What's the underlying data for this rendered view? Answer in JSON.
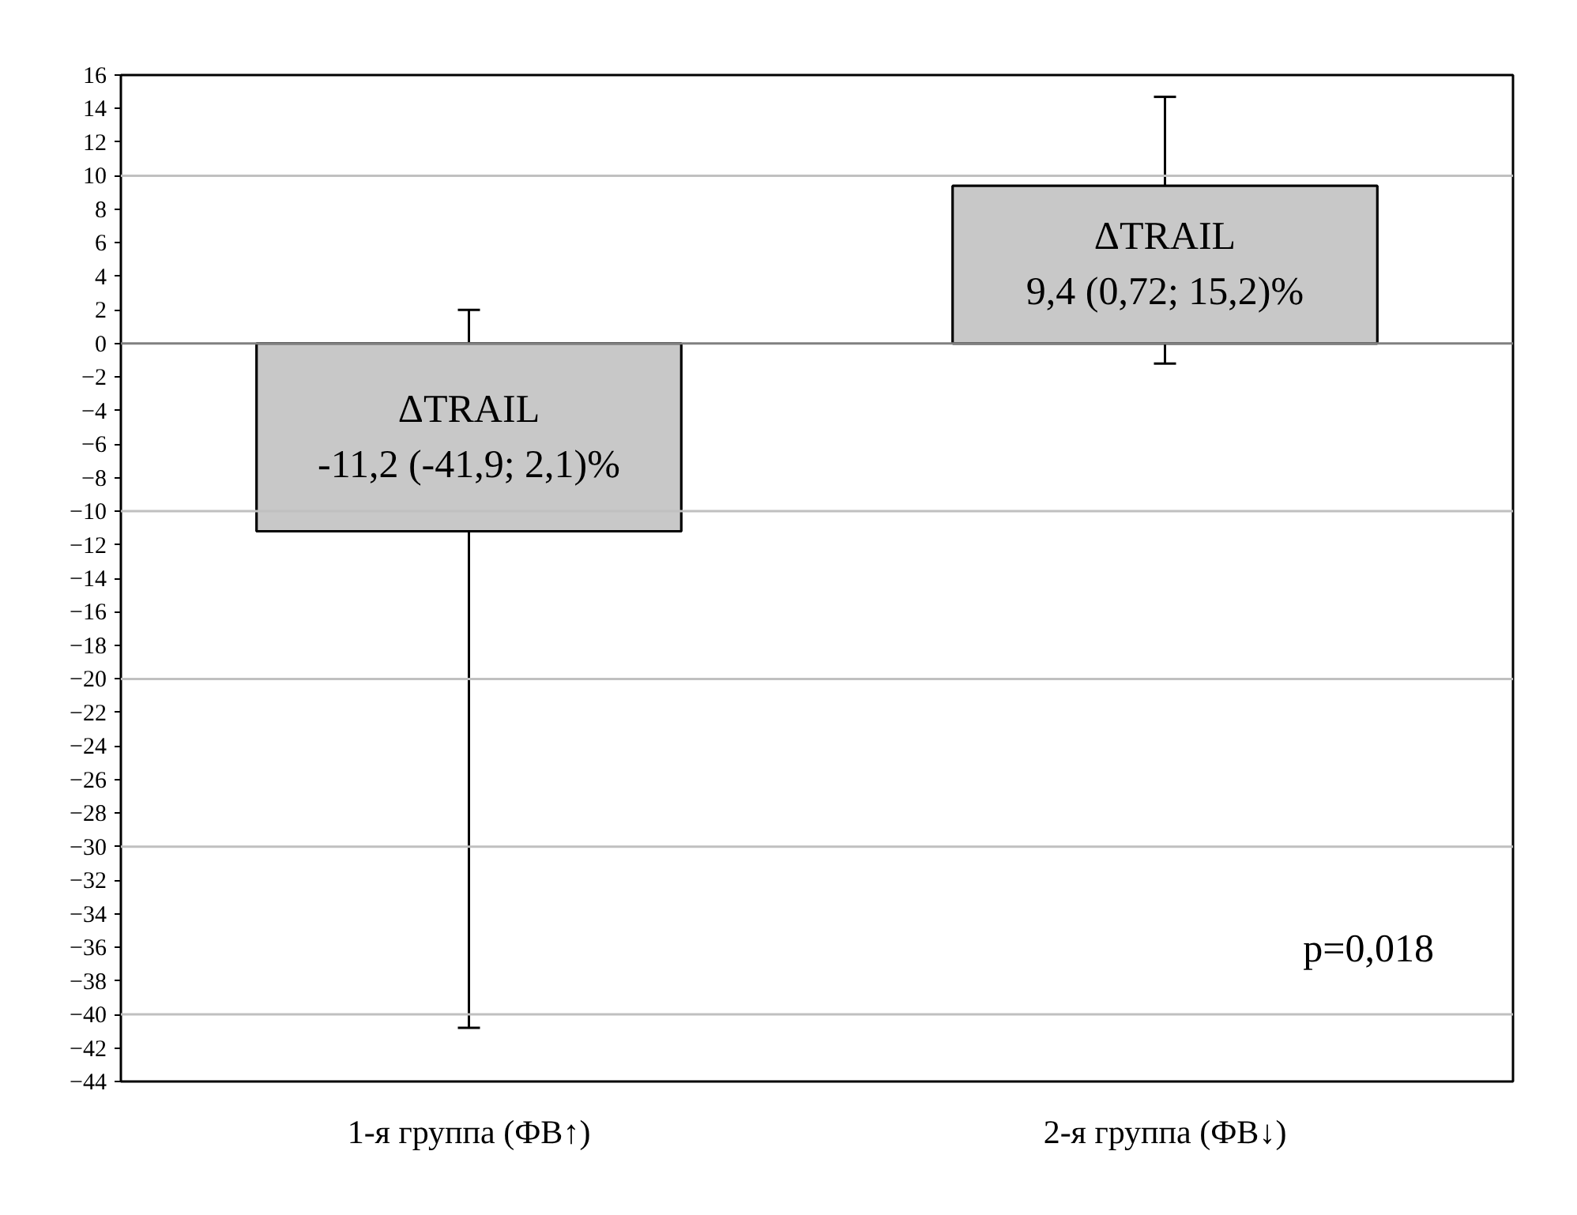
{
  "chart_data": {
    "type": "bar",
    "categories": [
      "1-я группа (ФВ↑)",
      "2-я группа (ФВ↓)"
    ],
    "values": [
      -11.2,
      9.4
    ],
    "color": "#c8c8c8",
    "errors": [
      [
        -40.8,
        2.0
      ],
      [
        -1.2,
        14.7
      ]
    ],
    "value_labels": [
      "ΔTRAIL\n-11,2 (-41,9; 2,1)%",
      "ΔTRAIL\n9,4 (0,72; 15,2)%"
    ],
    "ylim": [
      -44,
      16
    ],
    "yticks": [
      -44,
      -42,
      -40,
      -38,
      -36,
      -34,
      -32,
      -30,
      -28,
      -26,
      -24,
      -22,
      -20,
      -18,
      -16,
      -14,
      -12,
      -10,
      -8,
      -6,
      -4,
      -2,
      0,
      2,
      4,
      6,
      8,
      10,
      12,
      14,
      16
    ],
    "grid": false,
    "ref_lines": [
      {
        "axis": "y",
        "value": 10,
        "color": "#c0c0c0"
      },
      {
        "axis": "y",
        "value": 0,
        "color": "#808080"
      },
      {
        "axis": "y",
        "value": -10,
        "color": "#c0c0c0"
      },
      {
        "axis": "y",
        "value": -20,
        "color": "#c0c0c0"
      },
      {
        "axis": "y",
        "value": -30,
        "color": "#c0c0c0"
      },
      {
        "axis": "y",
        "value": -40,
        "color": "#c0c0c0"
      }
    ],
    "annotations": [
      "p=0,018"
    ]
  }
}
